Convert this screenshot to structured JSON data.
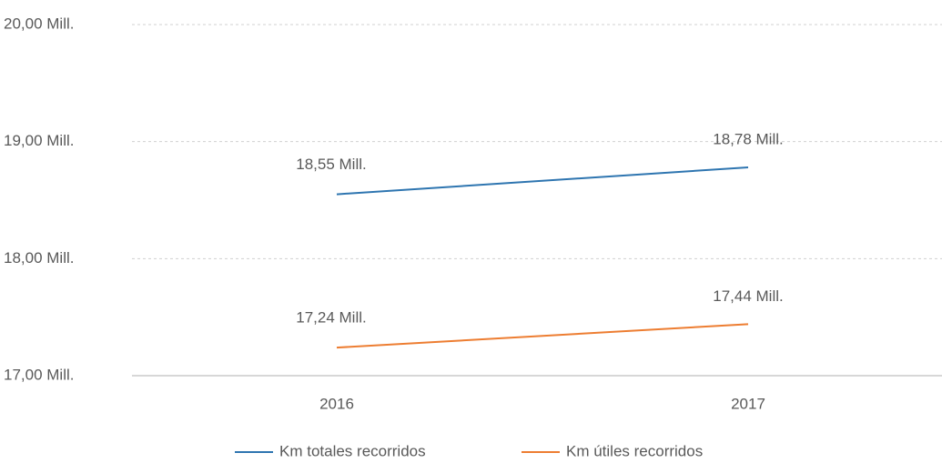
{
  "chart_data": {
    "type": "line",
    "categories": [
      "2016",
      "2017"
    ],
    "series": [
      {
        "name": "Km totales recorridos",
        "color": "#2e75b0",
        "values": [
          18550000,
          18780000
        ],
        "value_labels": [
          "18,55 Mill.",
          "18,78 Mill."
        ]
      },
      {
        "name": "Km útiles recorridos",
        "color": "#ed7d31",
        "values": [
          17240000,
          17440000
        ],
        "value_labels": [
          "17,24 Mill.",
          "17,44 Mill."
        ]
      }
    ],
    "ylim": [
      17000000,
      20000000
    ],
    "yticks": [
      {
        "value": 17000000,
        "label": "17,00 Mill."
      },
      {
        "value": 18000000,
        "label": "18,00 Mill."
      },
      {
        "value": 19000000,
        "label": "19,00 Mill."
      },
      {
        "value": 20000000,
        "label": "20,00 Mill."
      }
    ],
    "grid": true,
    "legend": "bottom"
  }
}
